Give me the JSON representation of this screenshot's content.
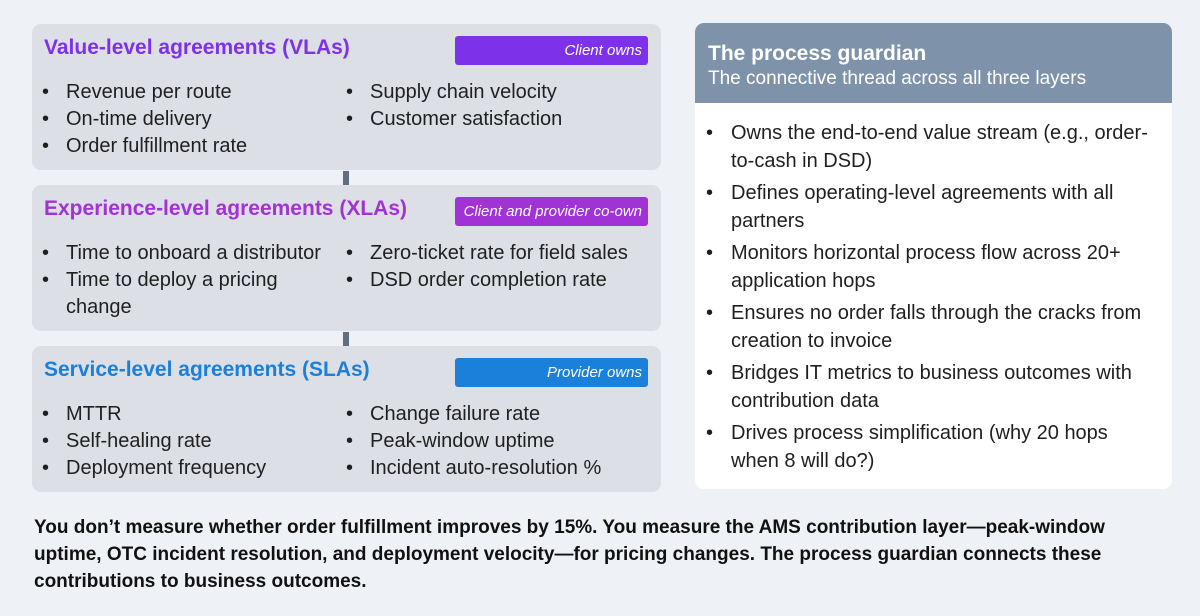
{
  "colors": {
    "background": "#eef1f5",
    "panel_bg": "#dcdfe5",
    "vla_accent": "#7d31e8",
    "xla_accent": "#a133d6",
    "sla_accent": "#1a80d9",
    "guardian_header_bg": "#7e93a9",
    "connector": "#5f6e80"
  },
  "vla": {
    "title": "Value-level agreements (VLAs)",
    "badge": "Client owns",
    "left_items": [
      "Revenue per route",
      "On-time delivery",
      "Order fulfillment rate"
    ],
    "right_items": [
      "Supply chain velocity",
      "Customer satisfaction"
    ]
  },
  "xla": {
    "title": "Experience-level agreements (XLAs)",
    "badge": "Client and provider co-own",
    "left_items": [
      "Time to onboard a distributor",
      "Time to deploy a pricing change"
    ],
    "right_items": [
      "Zero-ticket rate for field sales",
      "DSD order completion rate"
    ]
  },
  "sla": {
    "title": "Service-level agreements (SLAs)",
    "badge": "Provider owns",
    "left_items": [
      "MTTR",
      "Self-healing rate",
      "Deployment frequency"
    ],
    "right_items": [
      "Change failure rate",
      "Peak-window uptime",
      "Incident auto-resolution %"
    ]
  },
  "guardian": {
    "title": "The process guardian",
    "subtitle": "The connective thread across all three layers",
    "items": [
      "Owns the end-to-end value stream (e.g., order-to-cash in DSD)",
      "Defines operating-level agreements with all partners",
      "Monitors horizontal process flow across 20+ application hops",
      "Ensures no order falls through the cracks from creation to invoice",
      "Bridges IT metrics to business outcomes with contribution data",
      "Drives process simplification (why 20 hops when 8 will do?)"
    ]
  },
  "footer": {
    "text": "You don’t measure whether order fulfillment improves by 15%. You measure the AMS contribution layer—peak-window uptime, OTC incident resolution, and deployment velocity—for pricing changes. The process guardian connects these contributions to business outcomes."
  }
}
